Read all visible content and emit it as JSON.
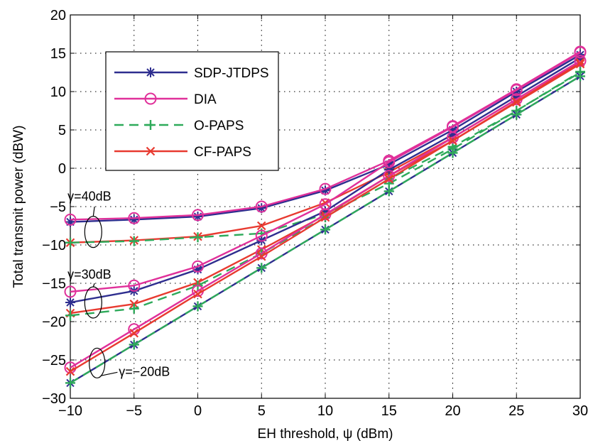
{
  "chart_data": {
    "type": "line",
    "title": "",
    "xlabel": "EH threshold, ψ (dBm)",
    "ylabel": "Total transmit power (dBW)",
    "xlim": [
      -10,
      30
    ],
    "ylim": [
      -30,
      20
    ],
    "xticks": [
      -10,
      -5,
      0,
      5,
      10,
      15,
      20,
      25,
      30
    ],
    "yticks": [
      -30,
      -25,
      -20,
      -15,
      -10,
      -5,
      0,
      5,
      10,
      15,
      20
    ],
    "grid": true,
    "legend_position": "top-left",
    "legend": [
      {
        "name": "SDP-JTDPS",
        "color": "#2e2e8f",
        "marker": "asterisk",
        "dash": "solid"
      },
      {
        "name": "DIA",
        "color": "#e0309a",
        "marker": "circle",
        "dash": "solid"
      },
      {
        "name": "O-PAPS",
        "color": "#2eaa5a",
        "marker": "plus",
        "dash": "dashed"
      },
      {
        "name": "CF-PAPS",
        "color": "#e83a30",
        "marker": "x",
        "dash": "solid"
      }
    ],
    "series": [
      {
        "name": "SDP-JTDPS",
        "x": [
          -10,
          -5,
          0,
          5,
          10,
          15,
          20,
          25,
          30
        ],
        "y": [
          -7.0,
          -6.7,
          -6.3,
          -5.2,
          -2.9,
          0.5,
          5.0,
          10.0,
          14.8
        ]
      },
      {
        "name": "DIA",
        "x": [
          -10,
          -5,
          0,
          5,
          10,
          15,
          20,
          25,
          30
        ],
        "y": [
          -6.7,
          -6.5,
          -6.1,
          -5.0,
          -2.7,
          1.0,
          5.5,
          10.3,
          15.2
        ]
      },
      {
        "name": "CF-PAPS",
        "x": [
          -10,
          -5,
          0,
          5,
          10,
          15,
          20,
          25,
          30
        ],
        "y": [
          -9.7,
          -9.4,
          -8.9,
          -7.5,
          -4.5,
          -0.5,
          4.0,
          9.0,
          14.0
        ]
      },
      {
        "name": "O-PAPS",
        "x": [
          -10,
          -5,
          0,
          5,
          10,
          15,
          20,
          25,
          30
        ],
        "y": [
          -9.7,
          -9.5,
          -9.0,
          -8.5,
          -6.0,
          -2.0,
          2.5,
          7.5,
          12.5
        ]
      },
      {
        "name": "SDP-JTDPS",
        "x": [
          -10,
          -5,
          0,
          5,
          10,
          15,
          20,
          25,
          30
        ],
        "y": [
          -17.5,
          -16.0,
          -13.2,
          -9.4,
          -5.6,
          -0.2,
          4.4,
          9.4,
          14.4
        ]
      },
      {
        "name": "DIA",
        "x": [
          -10,
          -5,
          0,
          5,
          10,
          15,
          20,
          25,
          30
        ],
        "y": [
          -16.1,
          -15.3,
          -12.8,
          -8.8,
          -4.7,
          0.8,
          5.4,
          10.2,
          15.1
        ]
      },
      {
        "name": "CF-PAPS",
        "x": [
          -10,
          -5,
          0,
          5,
          10,
          15,
          20,
          25,
          30
        ],
        "y": [
          -18.9,
          -17.7,
          -14.9,
          -10.6,
          -6.1,
          -1.0,
          3.6,
          8.7,
          13.8
        ]
      },
      {
        "name": "O-PAPS",
        "x": [
          -10,
          -5,
          0,
          5,
          10,
          15,
          20,
          25,
          30
        ],
        "y": [
          -19.2,
          -18.3,
          -15.3,
          -11.1,
          -6.4,
          -1.4,
          2.8,
          7.5,
          12.6
        ]
      },
      {
        "name": "SDP-JTDPS",
        "x": [
          -10,
          -5,
          0,
          5,
          10,
          15,
          20,
          25,
          30
        ],
        "y": [
          -28.0,
          -23.0,
          -18.0,
          -13.0,
          -8.0,
          -3.0,
          2.0,
          7.0,
          12.0
        ]
      },
      {
        "name": "DIA",
        "x": [
          -10,
          -5,
          0,
          5,
          10,
          15,
          20,
          25,
          30
        ],
        "y": [
          -26.0,
          -21.0,
          -16.0,
          -11.1,
          -6.0,
          -1.0,
          4.0,
          9.0,
          14.0
        ]
      },
      {
        "name": "CF-PAPS",
        "x": [
          -10,
          -5,
          0,
          5,
          10,
          15,
          20,
          25,
          30
        ],
        "y": [
          -26.5,
          -21.5,
          -16.4,
          -11.5,
          -6.4,
          -1.4,
          3.6,
          8.6,
          13.6
        ]
      },
      {
        "name": "O-PAPS",
        "x": [
          -10,
          -5,
          0,
          5,
          10,
          15,
          20,
          25,
          30
        ],
        "y": [
          -28.0,
          -23.0,
          -18.0,
          -13.0,
          -8.0,
          -3.0,
          2.0,
          7.0,
          12.0
        ]
      }
    ],
    "annotations": [
      {
        "text": "γ=40dB",
        "x": -8.5,
        "y": -4.2
      },
      {
        "text": "γ=30dB",
        "x": -8.5,
        "y": -14.4
      },
      {
        "text": "γ=−20dB",
        "x": -6.2,
        "y": -27.1
      }
    ]
  }
}
